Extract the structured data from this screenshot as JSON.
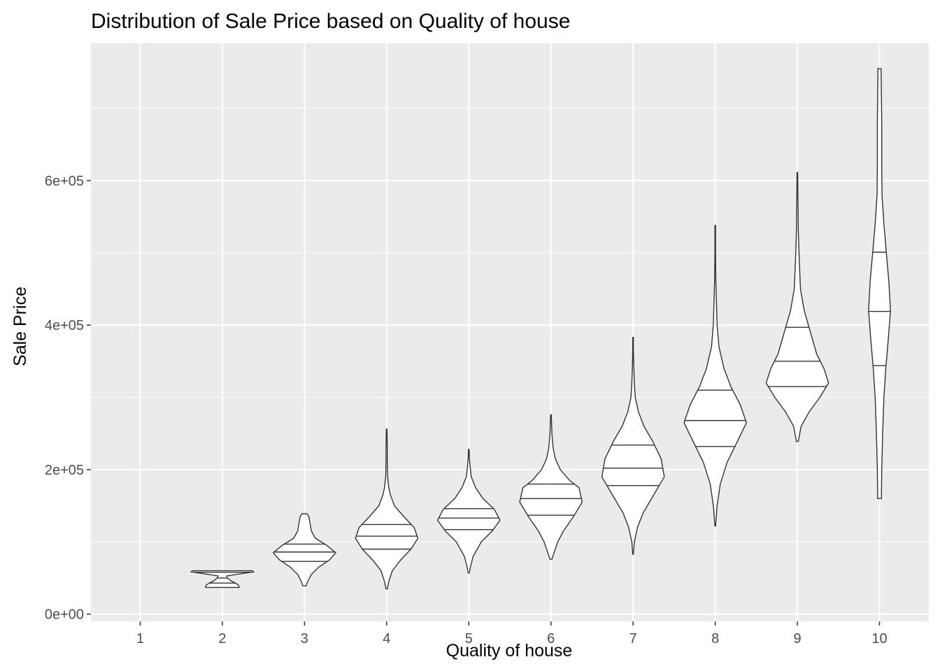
{
  "chart_data": {
    "type": "violin",
    "title": "Distribution of Sale Price based on Quality of house",
    "xlabel": "Quality of house",
    "ylabel": "Sale Price",
    "categories": [
      "1",
      "2",
      "3",
      "4",
      "5",
      "6",
      "7",
      "8",
      "9",
      "10"
    ],
    "y_ticks": [
      0,
      200000,
      400000,
      600000
    ],
    "y_tick_labels": [
      "0e+00",
      "2e+05",
      "4e+05",
      "6e+05"
    ],
    "ylim": [
      -10000,
      790000
    ],
    "grid": true,
    "quantiles_drawn": [
      0.25,
      0.5,
      0.75
    ],
    "colors": {
      "panel_background": "#ebebeb",
      "grid_line": "#ffffff",
      "violin_fill": "#ffffff",
      "violin_outline": "#333333"
    },
    "series": [
      {
        "category": "1",
        "min": null,
        "q1": null,
        "median": null,
        "q3": null,
        "max": null,
        "profile": []
      },
      {
        "category": "2",
        "min": 37000,
        "q1": 43000,
        "median": 50000,
        "q3": 58000,
        "max": 60000,
        "profile": [
          [
            37000,
            0.54
          ],
          [
            40000,
            0.52
          ],
          [
            43000,
            0.42
          ],
          [
            46000,
            0.28
          ],
          [
            50000,
            0.16
          ],
          [
            53000,
            0.14
          ],
          [
            56000,
            0.6
          ],
          [
            58500,
            1.0
          ],
          [
            60000,
            0.96
          ]
        ]
      },
      {
        "category": "3",
        "min": 39000,
        "q1": 73000,
        "median": 86000,
        "q3": 97000,
        "max": 139000,
        "profile": [
          [
            39000,
            0.05
          ],
          [
            45000,
            0.1
          ],
          [
            55000,
            0.22
          ],
          [
            65000,
            0.45
          ],
          [
            75000,
            0.8
          ],
          [
            85000,
            1.0
          ],
          [
            95000,
            0.72
          ],
          [
            105000,
            0.35
          ],
          [
            115000,
            0.22
          ],
          [
            125000,
            0.18
          ],
          [
            135000,
            0.14
          ],
          [
            139000,
            0.08
          ]
        ]
      },
      {
        "category": "4",
        "min": 35000,
        "q1": 90000,
        "median": 108000,
        "q3": 124000,
        "max": 256000,
        "profile": [
          [
            35000,
            0.02
          ],
          [
            45000,
            0.07
          ],
          [
            60000,
            0.18
          ],
          [
            75000,
            0.45
          ],
          [
            90000,
            0.78
          ],
          [
            105000,
            1.0
          ],
          [
            120000,
            0.88
          ],
          [
            135000,
            0.55
          ],
          [
            150000,
            0.25
          ],
          [
            165000,
            0.12
          ],
          [
            175000,
            0.07
          ],
          [
            190000,
            0.03
          ],
          [
            210000,
            0.02
          ],
          [
            230000,
            0.02
          ],
          [
            256000,
            0.01
          ]
        ]
      },
      {
        "category": "5",
        "min": 57000,
        "q1": 117000,
        "median": 133000,
        "q3": 146000,
        "max": 228000,
        "profile": [
          [
            57000,
            0.02
          ],
          [
            65000,
            0.05
          ],
          [
            80000,
            0.14
          ],
          [
            100000,
            0.4
          ],
          [
            115000,
            0.75
          ],
          [
            130000,
            1.0
          ],
          [
            145000,
            0.82
          ],
          [
            160000,
            0.45
          ],
          [
            175000,
            0.22
          ],
          [
            190000,
            0.08
          ],
          [
            205000,
            0.04
          ],
          [
            215000,
            0.02
          ],
          [
            228000,
            0.01
          ]
        ]
      },
      {
        "category": "6",
        "min": 76000,
        "q1": 137000,
        "median": 160000,
        "q3": 180000,
        "max": 276000,
        "profile": [
          [
            76000,
            0.03
          ],
          [
            85000,
            0.1
          ],
          [
            100000,
            0.22
          ],
          [
            115000,
            0.4
          ],
          [
            135000,
            0.72
          ],
          [
            155000,
            1.0
          ],
          [
            175000,
            0.9
          ],
          [
            185000,
            0.6
          ],
          [
            200000,
            0.3
          ],
          [
            215000,
            0.14
          ],
          [
            230000,
            0.07
          ],
          [
            250000,
            0.03
          ],
          [
            265000,
            0.02
          ],
          [
            276000,
            0.01
          ]
        ]
      },
      {
        "category": "7",
        "min": 83000,
        "q1": 178000,
        "median": 202000,
        "q3": 234000,
        "max": 383000,
        "profile": [
          [
            83000,
            0.01
          ],
          [
            100000,
            0.04
          ],
          [
            120000,
            0.14
          ],
          [
            140000,
            0.32
          ],
          [
            165000,
            0.66
          ],
          [
            190000,
            1.0
          ],
          [
            215000,
            0.9
          ],
          [
            240000,
            0.62
          ],
          [
            260000,
            0.35
          ],
          [
            280000,
            0.17
          ],
          [
            300000,
            0.07
          ],
          [
            320000,
            0.04
          ],
          [
            345000,
            0.02
          ],
          [
            365000,
            0.01
          ],
          [
            383000,
            0.01
          ]
        ]
      },
      {
        "category": "8",
        "min": 122000,
        "q1": 232000,
        "median": 268000,
        "q3": 310000,
        "max": 538000,
        "profile": [
          [
            122000,
            0.01
          ],
          [
            150000,
            0.06
          ],
          [
            180000,
            0.16
          ],
          [
            210000,
            0.38
          ],
          [
            240000,
            0.72
          ],
          [
            265000,
            1.0
          ],
          [
            290000,
            0.8
          ],
          [
            315000,
            0.5
          ],
          [
            340000,
            0.28
          ],
          [
            370000,
            0.12
          ],
          [
            400000,
            0.06
          ],
          [
            430000,
            0.04
          ],
          [
            460000,
            0.02
          ],
          [
            500000,
            0.01
          ],
          [
            538000,
            0.01
          ]
        ]
      },
      {
        "category": "9",
        "min": 239000,
        "q1": 315000,
        "median": 350000,
        "q3": 397000,
        "max": 611000,
        "profile": [
          [
            239000,
            0.03
          ],
          [
            260000,
            0.12
          ],
          [
            280000,
            0.38
          ],
          [
            300000,
            0.72
          ],
          [
            320000,
            1.0
          ],
          [
            340000,
            0.85
          ],
          [
            360000,
            0.62
          ],
          [
            390000,
            0.42
          ],
          [
            420000,
            0.22
          ],
          [
            450000,
            0.1
          ],
          [
            490000,
            0.06
          ],
          [
            530000,
            0.03
          ],
          [
            570000,
            0.02
          ],
          [
            611000,
            0.01
          ]
        ]
      },
      {
        "category": "10",
        "min": 160000,
        "q1": 344000,
        "median": 419000,
        "q3": 501000,
        "max": 755000,
        "profile": [
          [
            160000,
            0.06
          ],
          [
            200000,
            0.07
          ],
          [
            250000,
            0.1
          ],
          [
            300000,
            0.14
          ],
          [
            340000,
            0.2
          ],
          [
            380000,
            0.28
          ],
          [
            420000,
            0.35
          ],
          [
            460000,
            0.3
          ],
          [
            500000,
            0.22
          ],
          [
            540000,
            0.14
          ],
          [
            580000,
            0.08
          ],
          [
            620000,
            0.07
          ],
          [
            680000,
            0.07
          ],
          [
            720000,
            0.06
          ],
          [
            755000,
            0.05
          ]
        ]
      }
    ]
  }
}
